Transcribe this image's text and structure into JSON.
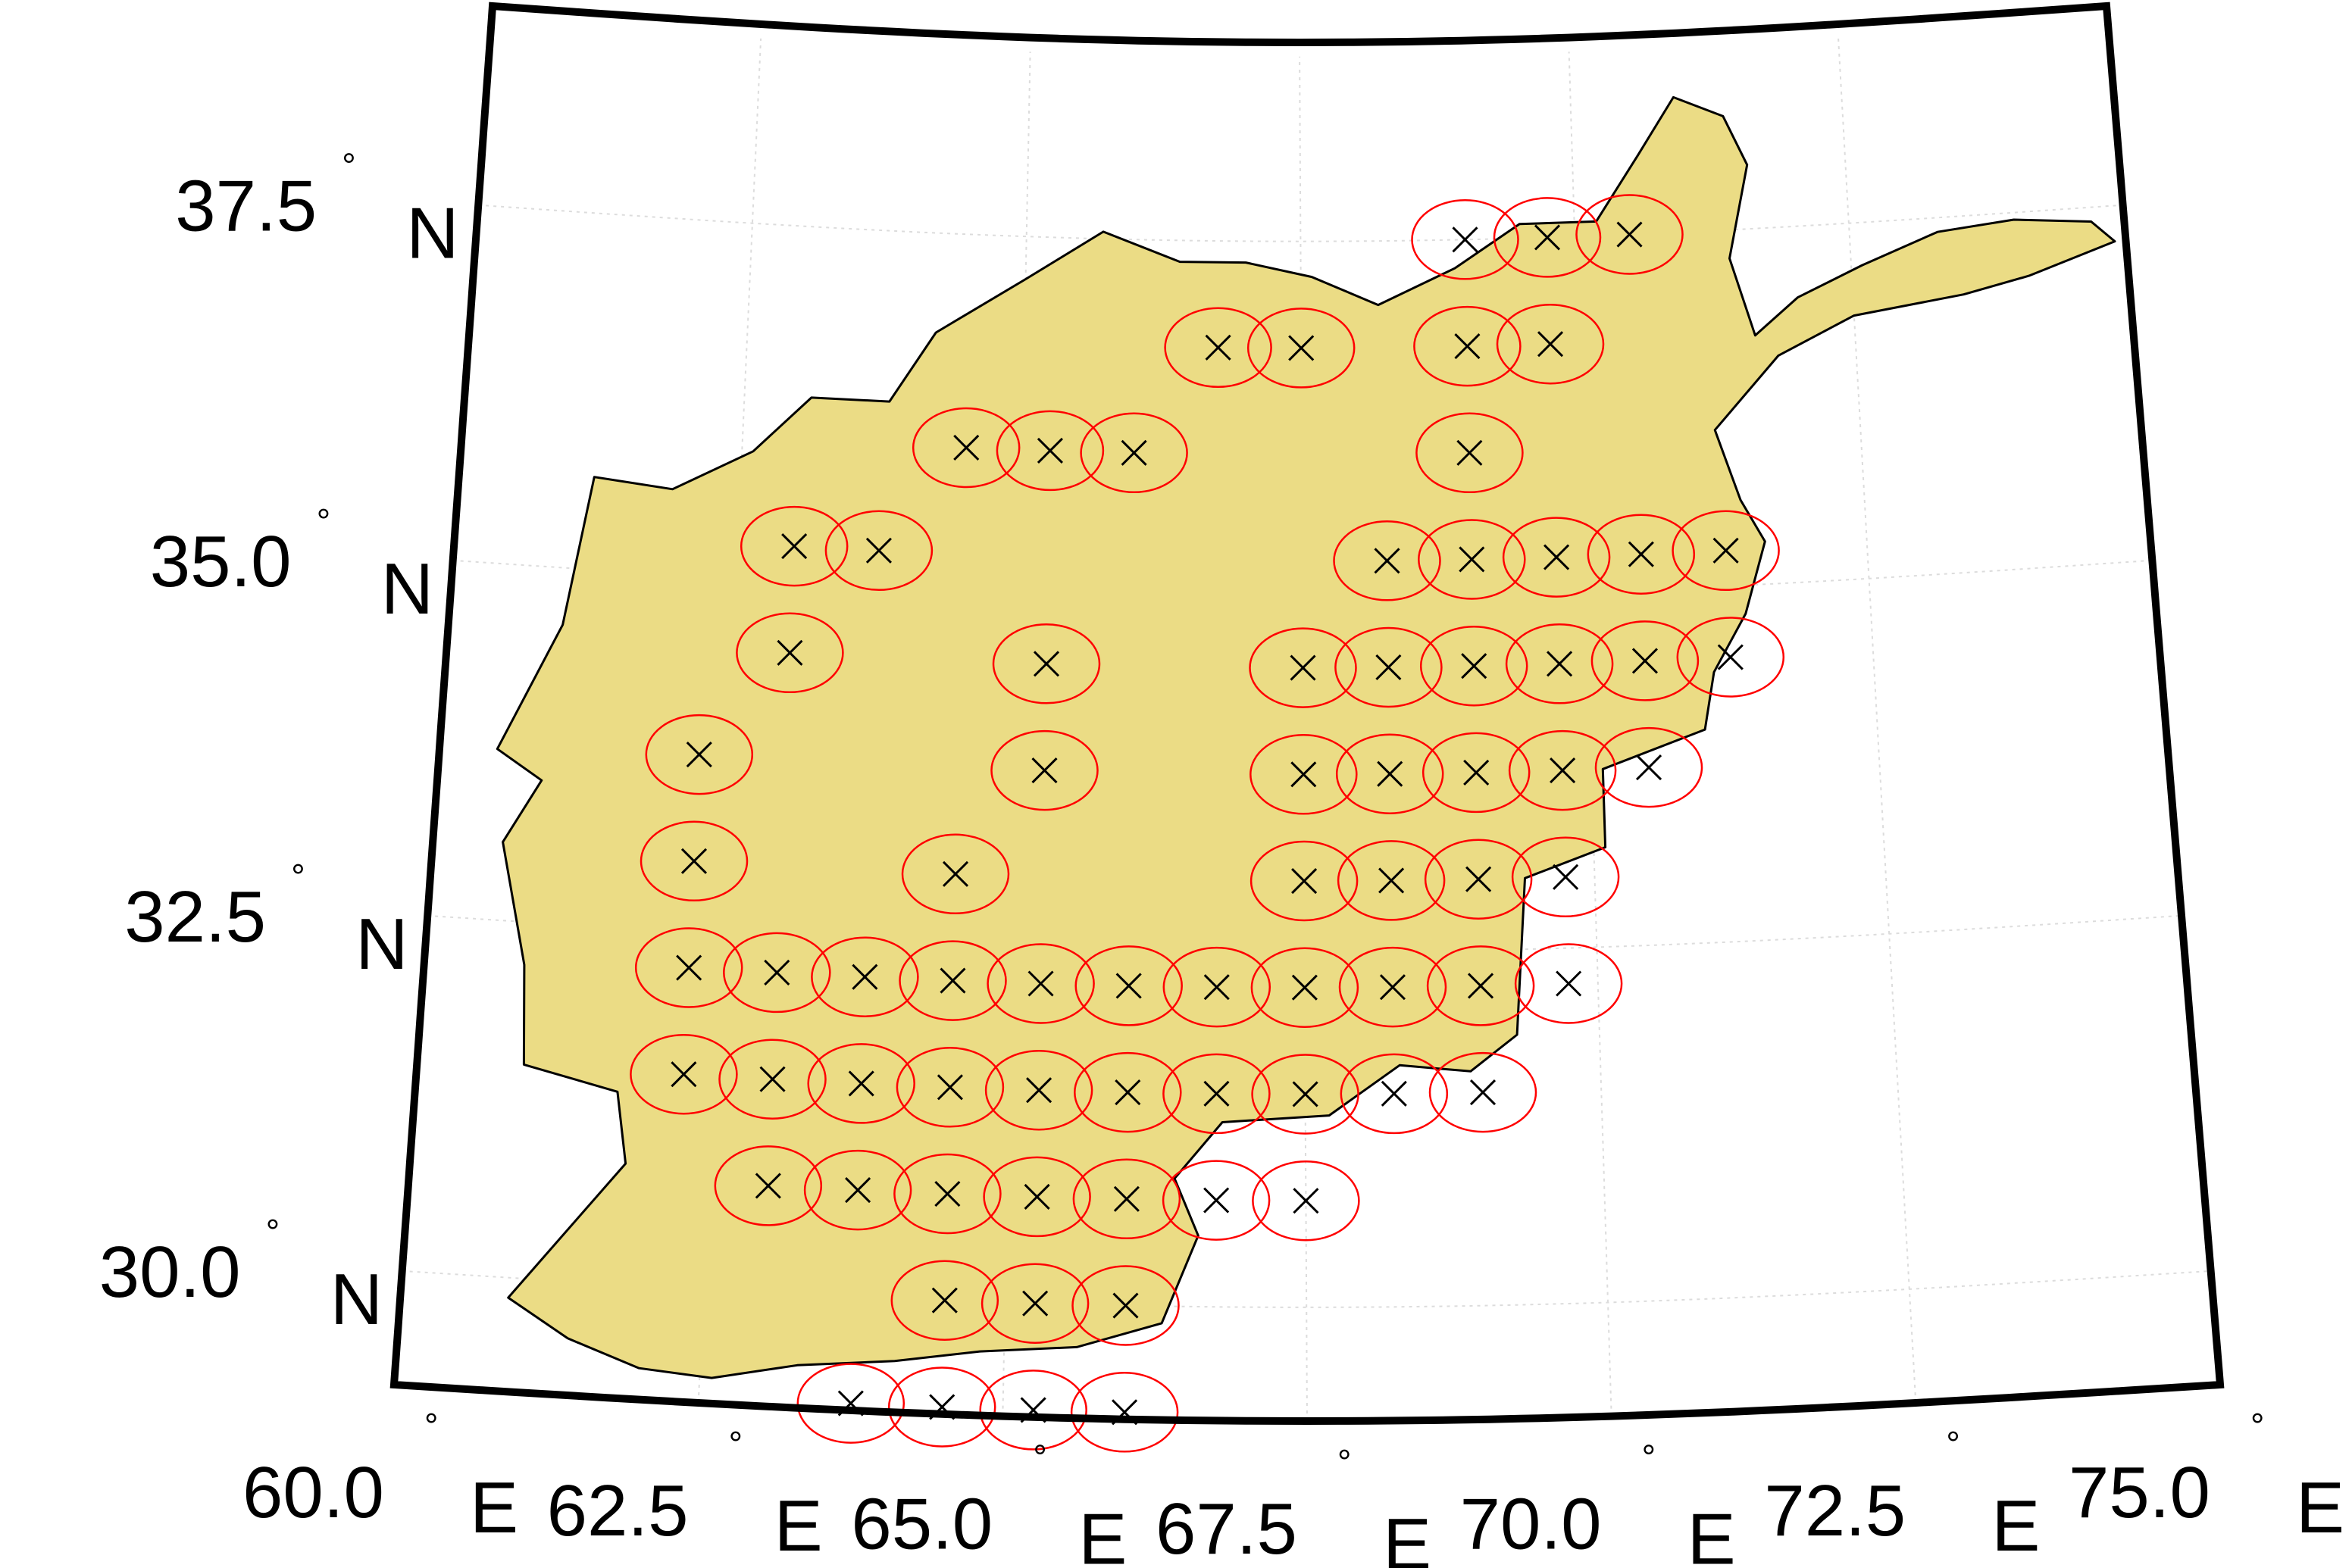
{
  "map": {
    "projection": "conic",
    "country_fill": "#ebdc85",
    "country_outline": "#000000",
    "circle_color": "#ff0000",
    "marker_color": "#000000",
    "marker_symbol": "x",
    "frame_color": "#000000",
    "graticule_color": "#dcdcdc",
    "lon_range": [
      60.0,
      75.0
    ],
    "lat_range": [
      29.2,
      38.9
    ],
    "lat_ticks": [
      {
        "value": 37.5,
        "number": "37.5",
        "deg": "°",
        "hemi": "N"
      },
      {
        "value": 35.0,
        "number": "35.0",
        "deg": "°",
        "hemi": "N"
      },
      {
        "value": 32.5,
        "number": "32.5",
        "deg": "°",
        "hemi": "N"
      },
      {
        "value": 30.0,
        "number": "30.0",
        "deg": "°",
        "hemi": "N"
      }
    ],
    "lon_ticks": [
      {
        "value": 60.0,
        "number": "60.0",
        "deg": "°",
        "hemi": "E"
      },
      {
        "value": 62.5,
        "number": "62.5",
        "deg": "°",
        "hemi": "E"
      },
      {
        "value": 65.0,
        "number": "65.0",
        "deg": "°",
        "hemi": "E"
      },
      {
        "value": 67.5,
        "number": "67.5",
        "deg": "°",
        "hemi": "E"
      },
      {
        "value": 70.0,
        "number": "70.0",
        "deg": "°",
        "hemi": "E"
      },
      {
        "value": 72.5,
        "number": "72.5",
        "deg": "°",
        "hemi": "E"
      },
      {
        "value": 75.0,
        "number": "75.0",
        "deg": "°",
        "hemi": "E"
      }
    ],
    "country_outline_lonlat": [
      [
        60.89,
        29.86
      ],
      [
        61.4,
        29.6
      ],
      [
        62.0,
        29.42
      ],
      [
        62.6,
        29.38
      ],
      [
        63.3,
        29.5
      ],
      [
        64.1,
        29.56
      ],
      [
        64.8,
        29.65
      ],
      [
        65.6,
        29.7
      ],
      [
        66.3,
        29.88
      ],
      [
        66.6,
        30.5
      ],
      [
        66.4,
        30.9
      ],
      [
        66.8,
        31.3
      ],
      [
        67.7,
        31.35
      ],
      [
        68.3,
        31.7
      ],
      [
        68.9,
        31.65
      ],
      [
        69.3,
        31.9
      ],
      [
        69.4,
        33.0
      ],
      [
        70.1,
        33.2
      ],
      [
        70.1,
        33.75
      ],
      [
        71.0,
        34.0
      ],
      [
        71.1,
        34.4
      ],
      [
        71.4,
        34.8
      ],
      [
        71.6,
        35.3
      ],
      [
        71.4,
        35.6
      ],
      [
        71.2,
        36.1
      ],
      [
        71.8,
        36.6
      ],
      [
        72.5,
        36.85
      ],
      [
        73.5,
        36.95
      ],
      [
        74.1,
        37.05
      ],
      [
        74.9,
        37.25
      ],
      [
        74.7,
        37.4
      ],
      [
        74.0,
        37.45
      ],
      [
        73.3,
        37.4
      ],
      [
        72.6,
        37.2
      ],
      [
        72.0,
        37.0
      ],
      [
        71.6,
        36.75
      ],
      [
        71.4,
        37.3
      ],
      [
        71.6,
        37.95
      ],
      [
        71.4,
        38.3
      ],
      [
        70.95,
        38.45
      ],
      [
        70.6,
        38.05
      ],
      [
        70.2,
        37.6
      ],
      [
        69.5,
        37.6
      ],
      [
        68.9,
        37.3
      ],
      [
        68.2,
        37.05
      ],
      [
        67.6,
        37.25
      ],
      [
        67.0,
        37.35
      ],
      [
        66.4,
        37.35
      ],
      [
        65.7,
        37.55
      ],
      [
        65.0,
        37.2
      ],
      [
        64.2,
        36.8
      ],
      [
        63.8,
        36.3
      ],
      [
        63.1,
        36.3
      ],
      [
        62.6,
        35.9
      ],
      [
        61.9,
        35.6
      ],
      [
        61.2,
        35.65
      ],
      [
        61.0,
        34.6
      ],
      [
        60.5,
        33.7
      ],
      [
        60.9,
        33.5
      ],
      [
        60.6,
        33.05
      ],
      [
        60.85,
        32.2
      ],
      [
        60.9,
        31.5
      ],
      [
        61.7,
        31.35
      ],
      [
        61.8,
        30.85
      ],
      [
        60.89,
        29.86
      ]
    ],
    "grid_points": [
      [
        69.0,
        37.5
      ],
      [
        69.75,
        37.5
      ],
      [
        70.5,
        37.5
      ],
      [
        66.75,
        36.75
      ],
      [
        67.5,
        36.75
      ],
      [
        69.0,
        36.75
      ],
      [
        69.75,
        36.75
      ],
      [
        64.5,
        36.0
      ],
      [
        65.25,
        36.0
      ],
      [
        66.0,
        36.0
      ],
      [
        69.0,
        36.0
      ],
      [
        63.0,
        35.25
      ],
      [
        63.75,
        35.25
      ],
      [
        68.25,
        35.25
      ],
      [
        69.0,
        35.25
      ],
      [
        69.75,
        35.25
      ],
      [
        70.5,
        35.25
      ],
      [
        71.25,
        35.25
      ],
      [
        63.0,
        34.5
      ],
      [
        65.25,
        34.5
      ],
      [
        67.5,
        34.5
      ],
      [
        68.25,
        34.5
      ],
      [
        69.0,
        34.5
      ],
      [
        69.75,
        34.5
      ],
      [
        70.5,
        34.5
      ],
      [
        71.25,
        34.5
      ],
      [
        62.25,
        33.75
      ],
      [
        65.25,
        33.75
      ],
      [
        67.5,
        33.75
      ],
      [
        68.25,
        33.75
      ],
      [
        69.0,
        33.75
      ],
      [
        69.75,
        33.75
      ],
      [
        70.5,
        33.75
      ],
      [
        62.25,
        33.0
      ],
      [
        64.5,
        33.0
      ],
      [
        67.5,
        33.0
      ],
      [
        68.25,
        33.0
      ],
      [
        69.0,
        33.0
      ],
      [
        69.75,
        33.0
      ],
      [
        62.25,
        32.25
      ],
      [
        63.0,
        32.25
      ],
      [
        63.75,
        32.25
      ],
      [
        64.5,
        32.25
      ],
      [
        65.25,
        32.25
      ],
      [
        66.0,
        32.25
      ],
      [
        66.75,
        32.25
      ],
      [
        67.5,
        32.25
      ],
      [
        68.25,
        32.25
      ],
      [
        69.0,
        32.25
      ],
      [
        69.75,
        32.25
      ],
      [
        62.25,
        31.5
      ],
      [
        63.0,
        31.5
      ],
      [
        63.75,
        31.5
      ],
      [
        64.5,
        31.5
      ],
      [
        65.25,
        31.5
      ],
      [
        66.0,
        31.5
      ],
      [
        66.75,
        31.5
      ],
      [
        67.5,
        31.5
      ],
      [
        68.25,
        31.5
      ],
      [
        69.0,
        31.5
      ],
      [
        63.0,
        30.75
      ],
      [
        63.75,
        30.75
      ],
      [
        64.5,
        30.75
      ],
      [
        65.25,
        30.75
      ],
      [
        66.0,
        30.75
      ],
      [
        66.75,
        30.75
      ],
      [
        67.5,
        30.75
      ],
      [
        64.5,
        30.0
      ],
      [
        65.25,
        30.0
      ],
      [
        66.0,
        30.0
      ],
      [
        63.75,
        29.25
      ],
      [
        64.5,
        29.25
      ],
      [
        65.25,
        29.25
      ],
      [
        66.0,
        29.25
      ]
    ]
  }
}
